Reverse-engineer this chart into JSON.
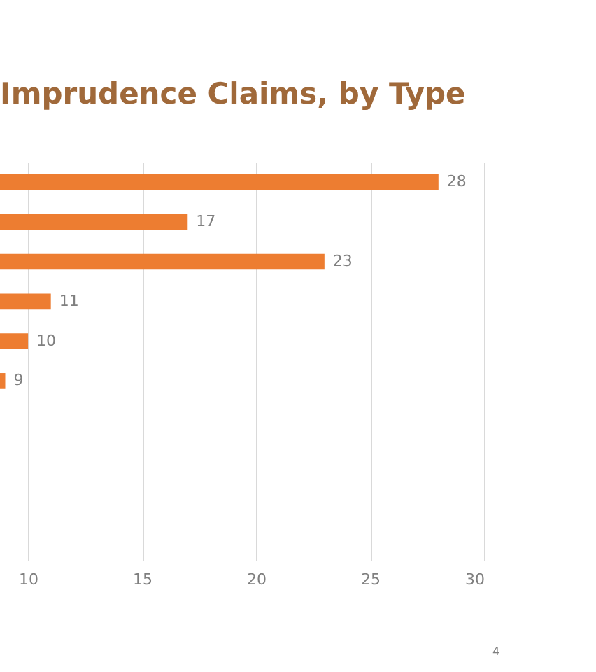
{
  "chart_data": {
    "type": "bar",
    "orientation": "horizontal",
    "title": "Imprudence Claims, by Type",
    "categories": [
      null,
      null,
      null,
      null,
      null,
      null,
      null,
      null,
      null,
      null
    ],
    "values": [
      28,
      17,
      23,
      11,
      10,
      9,
      null,
      null,
      null,
      null
    ],
    "color": "#ed7d31",
    "xlim": [
      8.77,
      30
    ],
    "xticks": [
      10,
      15,
      20,
      25,
      30
    ],
    "grid": "x",
    "tick_labels": "x",
    "data_labels": true,
    "annotations": [
      "4"
    ]
  }
}
